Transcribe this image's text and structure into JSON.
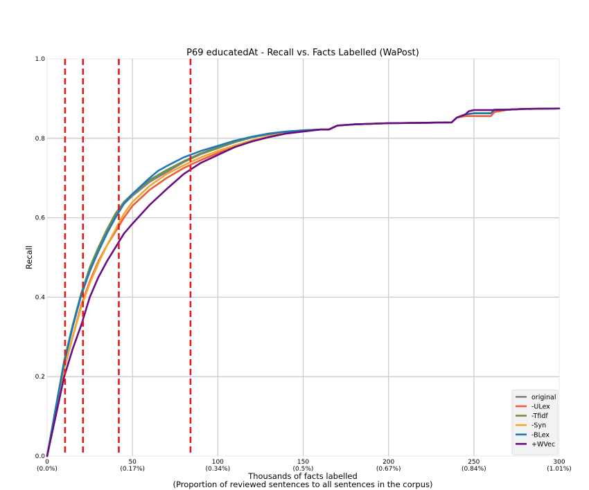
{
  "chart_data": {
    "type": "line",
    "title": "P69 educatedAt - Recall vs. Facts Labelled (WaPost)",
    "xlabel": "Thousands of facts labelled",
    "xlabel2": "(Proportion of reviewed sentences to all sentences in the corpus)",
    "ylabel": "Recall",
    "xlim": [
      0,
      300
    ],
    "ylim": [
      0,
      1.0
    ],
    "grid": true,
    "legend_position": "bottom-right",
    "x_ticks": [
      {
        "value": 0,
        "label": "0",
        "sublabel": "(0.0%)"
      },
      {
        "value": 50,
        "label": "50",
        "sublabel": "(0.17%)"
      },
      {
        "value": 100,
        "label": "100",
        "sublabel": "(0.34%)"
      },
      {
        "value": 150,
        "label": "150",
        "sublabel": "(0.5%)"
      },
      {
        "value": 200,
        "label": "200",
        "sublabel": "(0.67%)"
      },
      {
        "value": 250,
        "label": "250",
        "sublabel": "(0.84%)"
      },
      {
        "value": 300,
        "label": "300",
        "sublabel": "(1.01%)"
      }
    ],
    "y_ticks": [
      {
        "value": 0.0,
        "label": "0.0"
      },
      {
        "value": 0.2,
        "label": "0.2"
      },
      {
        "value": 0.4,
        "label": "0.4"
      },
      {
        "value": 0.6,
        "label": "0.6"
      },
      {
        "value": 0.8,
        "label": "0.8"
      },
      {
        "value": 1.0,
        "label": "1.0"
      }
    ],
    "vertical_lines": {
      "color": "#e41a1c",
      "style": "dashed",
      "x": [
        10.5,
        21,
        42,
        84
      ]
    },
    "series": [
      {
        "name": "original",
        "color": "#808080",
        "x": [
          0,
          5,
          10,
          15,
          20,
          25,
          30,
          35,
          40,
          45,
          50,
          60,
          70,
          80,
          90,
          100,
          110,
          120,
          130,
          140,
          150,
          160,
          165,
          170,
          180,
          200,
          220,
          237,
          240,
          245,
          250,
          260,
          262,
          270,
          280,
          300
        ],
        "y": [
          0.0,
          0.12,
          0.24,
          0.33,
          0.41,
          0.47,
          0.52,
          0.565,
          0.605,
          0.635,
          0.655,
          0.69,
          0.715,
          0.74,
          0.76,
          0.775,
          0.79,
          0.802,
          0.81,
          0.816,
          0.82,
          0.822,
          0.822,
          0.832,
          0.835,
          0.838,
          0.839,
          0.84,
          0.852,
          0.86,
          0.863,
          0.863,
          0.872,
          0.872,
          0.874,
          0.875
        ]
      },
      {
        "name": "-ULex",
        "color": "#ee5a3a",
        "x": [
          0,
          5,
          10,
          15,
          20,
          25,
          30,
          35,
          40,
          45,
          50,
          60,
          70,
          80,
          90,
          100,
          110,
          120,
          130,
          140,
          150,
          160,
          165,
          170,
          180,
          200,
          220,
          237,
          240,
          245,
          250,
          260,
          262,
          270,
          280,
          300
        ],
        "y": [
          0.0,
          0.11,
          0.22,
          0.3,
          0.38,
          0.44,
          0.49,
          0.53,
          0.565,
          0.6,
          0.63,
          0.67,
          0.7,
          0.725,
          0.745,
          0.763,
          0.778,
          0.792,
          0.803,
          0.812,
          0.818,
          0.822,
          0.822,
          0.832,
          0.835,
          0.838,
          0.839,
          0.84,
          0.852,
          0.856,
          0.856,
          0.856,
          0.866,
          0.872,
          0.874,
          0.875
        ]
      },
      {
        "name": "-Tfidf",
        "color": "#6b8e4e",
        "x": [
          0,
          5,
          10,
          15,
          20,
          25,
          30,
          35,
          40,
          45,
          50,
          60,
          70,
          80,
          90,
          100,
          110,
          120,
          130,
          140,
          150,
          160,
          165,
          170,
          180,
          200,
          220,
          237,
          240,
          245,
          250,
          260,
          262,
          270,
          280,
          300
        ],
        "y": [
          0.0,
          0.12,
          0.24,
          0.33,
          0.41,
          0.475,
          0.525,
          0.57,
          0.61,
          0.64,
          0.66,
          0.695,
          0.72,
          0.742,
          0.762,
          0.777,
          0.791,
          0.803,
          0.811,
          0.816,
          0.82,
          0.822,
          0.822,
          0.832,
          0.835,
          0.838,
          0.839,
          0.84,
          0.852,
          0.86,
          0.863,
          0.863,
          0.872,
          0.872,
          0.874,
          0.875
        ]
      },
      {
        "name": "-Syn",
        "color": "#f0a830",
        "x": [
          0,
          5,
          10,
          15,
          20,
          25,
          30,
          35,
          40,
          45,
          50,
          60,
          70,
          80,
          90,
          100,
          110,
          120,
          130,
          140,
          150,
          160,
          165,
          170,
          180,
          200,
          220,
          237,
          240,
          245,
          250,
          260,
          262,
          270,
          280,
          300
        ],
        "y": [
          0.0,
          0.11,
          0.22,
          0.3,
          0.375,
          0.435,
          0.485,
          0.53,
          0.57,
          0.61,
          0.64,
          0.68,
          0.71,
          0.732,
          0.752,
          0.768,
          0.782,
          0.795,
          0.805,
          0.813,
          0.819,
          0.822,
          0.822,
          0.832,
          0.835,
          0.838,
          0.839,
          0.84,
          0.852,
          0.86,
          0.863,
          0.863,
          0.872,
          0.872,
          0.874,
          0.875
        ]
      },
      {
        "name": "-BLex",
        "color": "#1f78b4",
        "x": [
          0,
          5,
          10,
          15,
          20,
          25,
          30,
          35,
          40,
          45,
          50,
          60,
          65,
          70,
          80,
          90,
          100,
          110,
          120,
          130,
          140,
          150,
          160,
          165,
          170,
          180,
          200,
          220,
          237,
          240,
          245,
          250,
          260,
          262,
          270,
          280,
          300
        ],
        "y": [
          0.0,
          0.12,
          0.235,
          0.325,
          0.405,
          0.465,
          0.515,
          0.56,
          0.6,
          0.635,
          0.66,
          0.7,
          0.718,
          0.73,
          0.752,
          0.768,
          0.781,
          0.794,
          0.804,
          0.812,
          0.817,
          0.82,
          0.822,
          0.822,
          0.832,
          0.835,
          0.838,
          0.839,
          0.84,
          0.852,
          0.86,
          0.863,
          0.863,
          0.872,
          0.872,
          0.874,
          0.875
        ]
      },
      {
        "name": "+WVec",
        "color": "#6a0d83",
        "x": [
          0,
          5,
          10,
          15,
          20,
          25,
          30,
          35,
          40,
          45,
          50,
          60,
          70,
          80,
          90,
          100,
          110,
          120,
          130,
          140,
          150,
          160,
          165,
          170,
          180,
          200,
          220,
          237,
          240,
          245,
          247,
          250,
          260,
          270,
          280,
          300
        ],
        "y": [
          0.0,
          0.1,
          0.2,
          0.27,
          0.33,
          0.4,
          0.45,
          0.49,
          0.525,
          0.56,
          0.585,
          0.632,
          0.672,
          0.71,
          0.738,
          0.758,
          0.778,
          0.792,
          0.803,
          0.812,
          0.817,
          0.822,
          0.822,
          0.832,
          0.835,
          0.838,
          0.839,
          0.84,
          0.852,
          0.86,
          0.868,
          0.871,
          0.871,
          0.872,
          0.874,
          0.875
        ]
      }
    ]
  }
}
